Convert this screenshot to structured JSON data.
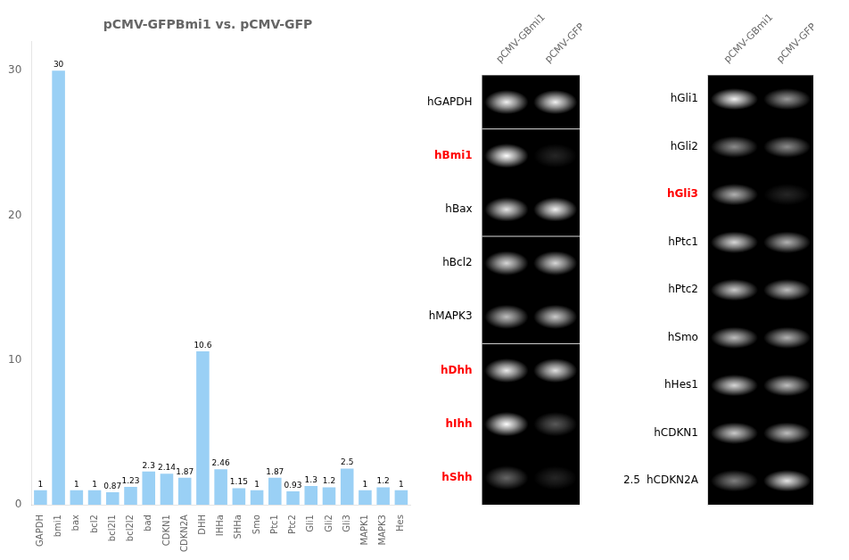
{
  "chart_data": [
    {
      "type": "bar",
      "title": "pCMV-GFPBmi1 vs. pCMV-GFP",
      "categories": [
        "GAPDH",
        "bmi1",
        "bax",
        "bcl2",
        "bcl2l1",
        "bcl2l2",
        "bad",
        "CDKN1",
        "CDKN2A",
        "DHH",
        "IHHa",
        "SHHa",
        "Smo",
        "Ptc1",
        "Ptc2",
        "Gli1",
        "Gli2",
        "Gli3",
        "MAPK1",
        "MAPK3",
        "Hes"
      ],
      "values": [
        1,
        30,
        1,
        1,
        0.87,
        1.23,
        2.3,
        2.14,
        1.87,
        10.6,
        2.46,
        1.15,
        1,
        1.87,
        0.93,
        1.3,
        1.2,
        2.5,
        1,
        1.2,
        1
      ],
      "ylim": [
        0,
        32
      ],
      "yticks": [
        0,
        10,
        20,
        30
      ],
      "data_labels": true,
      "grid": false
    },
    {
      "type": "heatmap",
      "x": [
        "pCMV-GBmi1",
        "pCMV-GFP"
      ],
      "y": [
        "hGAPDH",
        "hBmi1",
        "hBax",
        "hBcl2",
        "hMAPK3",
        "hDhh",
        "hIhh",
        "hShh"
      ],
      "label_colors": [
        "black",
        "red",
        "black",
        "black",
        "black",
        "red",
        "red",
        "red"
      ],
      "separators": [
        1,
        3,
        5
      ],
      "cells": [
        [
          0.95,
          0.95
        ],
        [
          1.0,
          0.15
        ],
        [
          0.9,
          0.95
        ],
        [
          0.85,
          0.85
        ],
        [
          0.75,
          0.8
        ],
        [
          0.92,
          0.88
        ],
        [
          1.0,
          0.35
        ],
        [
          0.4,
          0.15
        ]
      ],
      "grid": false
    },
    {
      "type": "heatmap",
      "x": [
        "pCMV-GBmi1",
        "pCMV-GFP"
      ],
      "y": [
        "hGli1",
        "hGli2",
        "hGli3",
        "hPtc1",
        "hPtc2",
        "hSmo",
        "hHes1",
        "hCDKN1",
        "hCDKN2A"
      ],
      "label_colors": [
        "black",
        "black",
        "red",
        "black",
        "black",
        "black",
        "black",
        "black",
        "black"
      ],
      "cells": [
        [
          0.95,
          0.6
        ],
        [
          0.55,
          0.55
        ],
        [
          0.7,
          0.15
        ],
        [
          0.85,
          0.7
        ],
        [
          0.8,
          0.75
        ],
        [
          0.75,
          0.7
        ],
        [
          0.85,
          0.75
        ],
        [
          0.8,
          0.75
        ],
        [
          0.5,
          0.9
        ]
      ],
      "annotations": [
        {
          "text": "2.5",
          "y": "hCDKN2A"
        }
      ],
      "grid": false
    }
  ]
}
